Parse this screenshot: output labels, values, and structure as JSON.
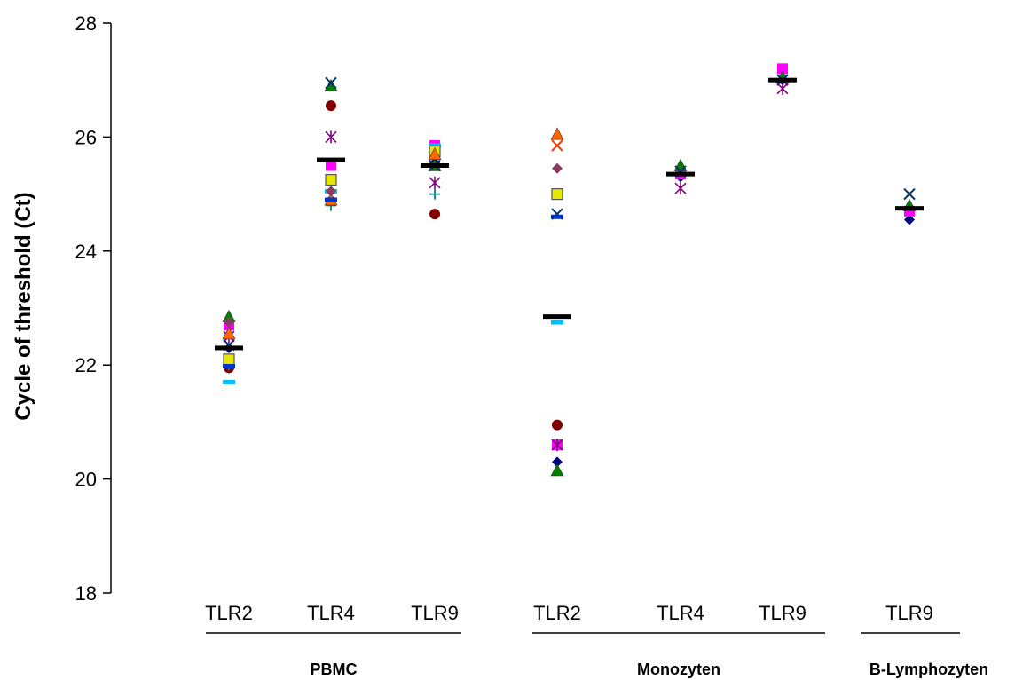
{
  "chart_data": {
    "type": "scatter",
    "title": "",
    "ylabel": "Cycle of threshold (Ct)",
    "xlabel": "",
    "ylim": [
      18,
      28
    ],
    "yticks": [
      18,
      20,
      22,
      24,
      26,
      28
    ],
    "categories": [
      {
        "label": "TLR2",
        "group": "PBMC"
      },
      {
        "label": "TLR4",
        "group": "PBMC"
      },
      {
        "label": "TLR9",
        "group": "PBMC"
      },
      {
        "label": "TLR2",
        "group": "Monozyten"
      },
      {
        "label": "TLR4",
        "group": "Monozyten"
      },
      {
        "label": "TLR9",
        "group": "Monozyten"
      },
      {
        "label": "TLR9",
        "group": "B-Lymphozyten"
      }
    ],
    "groups": [
      "PBMC",
      "Monozyten",
      "B-Lymphozyten"
    ],
    "means": [
      22.3,
      25.6,
      25.5,
      22.85,
      25.35,
      27.0,
      24.75
    ],
    "series": [
      {
        "marker": "diamond",
        "color": "#000080",
        "values": [
          22.3,
          24.9,
          25.55,
          20.3,
          25.3,
          27.0,
          24.55
        ]
      },
      {
        "marker": "square-filled",
        "color": "#FF00FF",
        "values": [
          22.7,
          25.5,
          25.85,
          20.6,
          25.35,
          27.2,
          24.7
        ]
      },
      {
        "marker": "triangle",
        "color": "#008000",
        "values": [
          22.85,
          26.9,
          25.5,
          20.15,
          25.5,
          27.05,
          24.8
        ]
      },
      {
        "marker": "x",
        "color": "#003366",
        "values": [
          22.35,
          26.95,
          25.5,
          24.65,
          25.4,
          27.0,
          25.0
        ]
      },
      {
        "marker": "asterisk",
        "color": "#800080",
        "values": [
          22.5,
          26.0,
          25.2,
          20.6,
          25.1,
          26.85,
          null
        ]
      },
      {
        "marker": "circle",
        "color": "#800000",
        "values": [
          21.95,
          26.55,
          24.65,
          20.95,
          null,
          null,
          null
        ]
      },
      {
        "marker": "plus",
        "color": "#008080",
        "values": [
          22.0,
          24.8,
          25.0,
          null,
          null,
          null,
          null
        ]
      },
      {
        "marker": "dash",
        "color": "#00BFFF",
        "values": [
          21.7,
          25.05,
          25.85,
          22.75,
          null,
          null,
          null
        ]
      },
      {
        "marker": "square-open",
        "color": "#E6E600",
        "values": [
          22.1,
          25.25,
          25.75,
          25.0,
          null,
          null,
          null
        ]
      },
      {
        "marker": "triangle",
        "color": "#FF6600",
        "values": [
          22.55,
          24.9,
          25.7,
          26.05,
          null,
          null,
          null
        ]
      },
      {
        "marker": "diamond",
        "color": "#8B3A62",
        "values": [
          22.75,
          25.05,
          null,
          25.45,
          null,
          null,
          null
        ]
      },
      {
        "marker": "x",
        "color": "#FF3300",
        "values": [
          null,
          null,
          null,
          25.85,
          null,
          null,
          null
        ]
      },
      {
        "marker": "dash",
        "color": "#0033CC",
        "values": [
          21.98,
          24.9,
          null,
          24.6,
          null,
          null,
          null
        ]
      }
    ]
  }
}
